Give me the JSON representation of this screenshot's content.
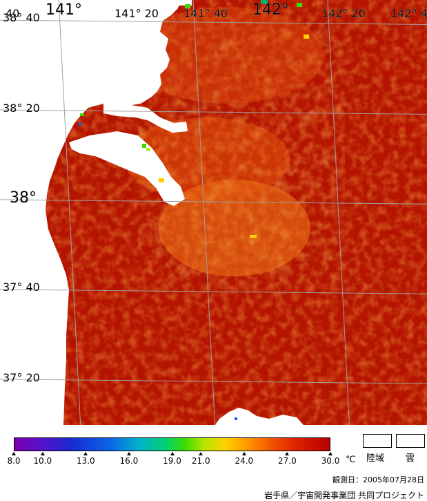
{
  "map": {
    "grid_color": "#a0a0a0",
    "sea_color": "#b41400",
    "land_color": "#ffffff",
    "lat_labels": [
      {
        "text": "38° 40",
        "deg": 38.6667
      },
      {
        "text": "38° 20",
        "deg": 38.3333
      },
      {
        "text": "38°",
        "deg": 38.0,
        "big": true
      },
      {
        "text": "37° 40",
        "deg": 37.6667
      },
      {
        "text": "37° 20",
        "deg": 37.3333
      }
    ],
    "lon_labels": [
      {
        "text": "40",
        "deg": 140.6667
      },
      {
        "text": "141°",
        "deg": 141.0,
        "big": true
      },
      {
        "text": "141° 20",
        "deg": 141.3333
      },
      {
        "text": "141° 40",
        "deg": 141.6667
      },
      {
        "text": "142°",
        "deg": 142.0,
        "big": true
      },
      {
        "text": "142° 20",
        "deg": 142.3333
      },
      {
        "text": "142° 4",
        "deg": 142.6667
      }
    ]
  },
  "legend": {
    "ticks": [
      "8.0",
      "10.0",
      "13.0",
      "16.0",
      "19.0",
      "21.0",
      "24.0",
      "27.0",
      "30.0"
    ],
    "tick_values": [
      8,
      10,
      13,
      16,
      19,
      21,
      24,
      27,
      30
    ],
    "min": 8,
    "max": 30,
    "unit": "℃",
    "land_label": "陸域",
    "cloud_label": "雲"
  },
  "observation_date": "観測日：2005年07月28日",
  "credit": "岩手県／宇宙開発事業団 共同プロジェクト"
}
